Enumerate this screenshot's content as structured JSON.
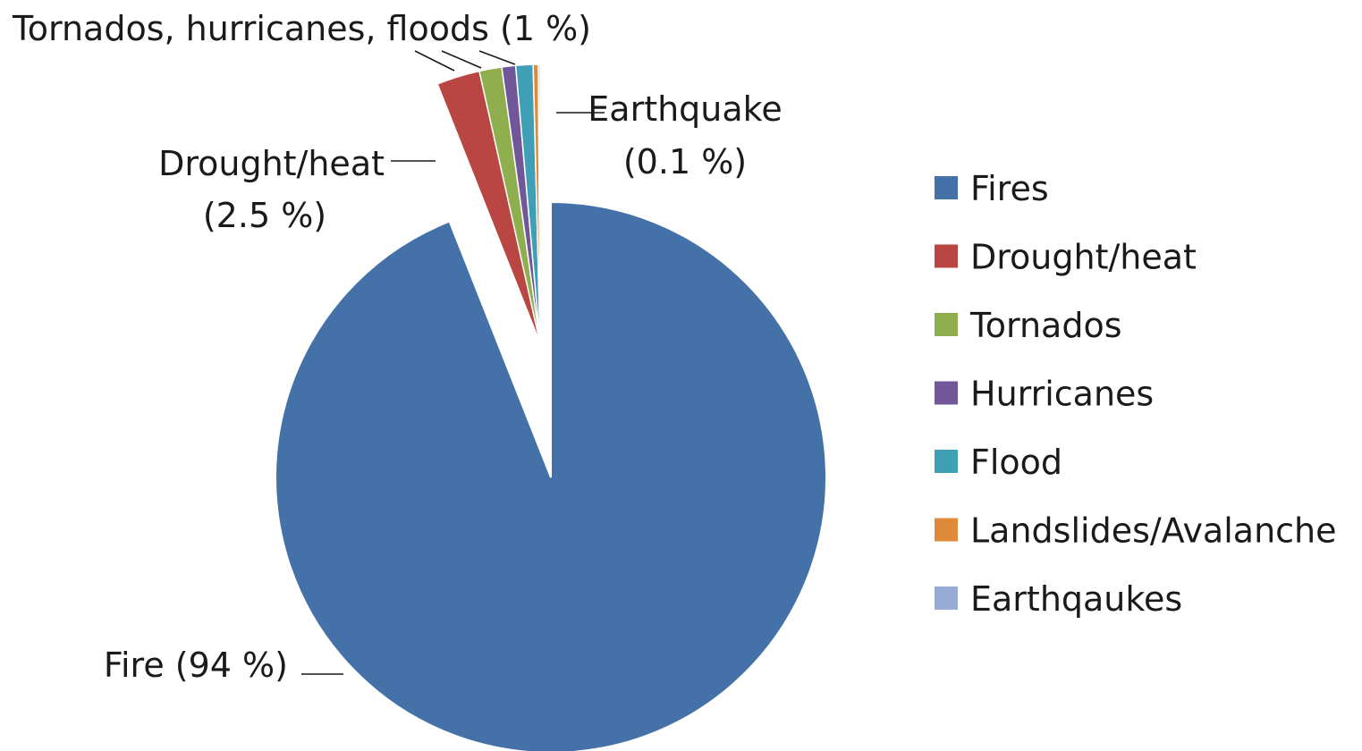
{
  "chart_data": {
    "type": "pie",
    "exploded": true,
    "legend_position": "right",
    "slices": [
      {
        "legend": "Fires",
        "value": 94,
        "color": "#4472a8"
      },
      {
        "legend": "Drought/heat",
        "value": 2.5,
        "color": "#b94643"
      },
      {
        "legend": "Tornados",
        "value": 1.3,
        "color": "#8faf4f"
      },
      {
        "legend": "Hurricanes",
        "value": 0.8,
        "color": "#71579a"
      },
      {
        "legend": "Flood",
        "value": 1.0,
        "color": "#3f9fb5"
      },
      {
        "legend": "Landslides/Avalanche",
        "value": 0.3,
        "color": "#e08b3a"
      },
      {
        "legend": "Earthqaukes",
        "value": 0.1,
        "color": "#96acd6"
      }
    ],
    "annotations": {
      "fire": "Fire (94 %)",
      "drought_line1": "Drought/heat",
      "drought_line2": "(2.5 %)",
      "tornados_group": "Tornados, hurricanes, floods (1 %)",
      "earthquake_line1": "Earthquake",
      "earthquake_line2": "(0.1 %)"
    }
  }
}
